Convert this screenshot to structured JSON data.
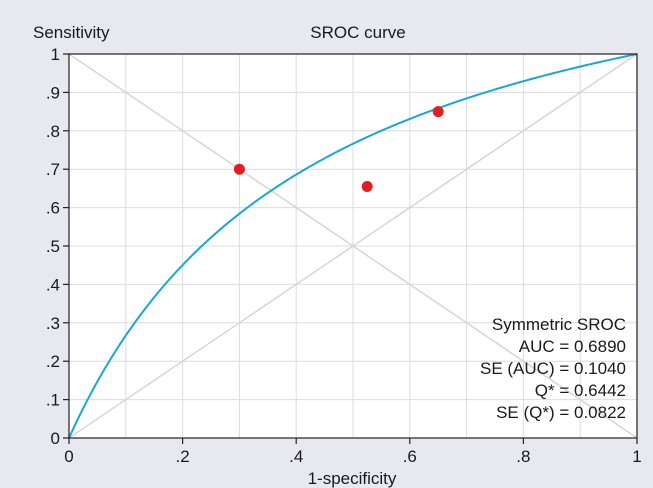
{
  "chart_data": {
    "type": "scatter",
    "title": "SROC curve",
    "xlabel": "1-specificity",
    "ylabel": "Sensitivity",
    "xlim": [
      0,
      1
    ],
    "ylim": [
      0,
      1
    ],
    "grid": true,
    "x_ticks": [
      0,
      0.1,
      0.2,
      0.3,
      0.4,
      0.5,
      0.6,
      0.7,
      0.8,
      0.9,
      1
    ],
    "y_ticks": [
      0,
      0.1,
      0.2,
      0.3,
      0.4,
      0.5,
      0.6,
      0.7,
      0.8,
      0.9,
      1
    ],
    "x_tick_labels": [
      {
        "value": 0,
        "label": "0"
      },
      {
        "value": 0.2,
        "label": ".2"
      },
      {
        "value": 0.4,
        "label": ".4"
      },
      {
        "value": 0.6,
        "label": ".6"
      },
      {
        "value": 0.8,
        "label": ".8"
      },
      {
        "value": 1,
        "label": "1"
      }
    ],
    "y_tick_labels": [
      {
        "value": 0,
        "label": "0"
      },
      {
        "value": 0.1,
        "label": ".1"
      },
      {
        "value": 0.2,
        "label": ".2"
      },
      {
        "value": 0.3,
        "label": ".3"
      },
      {
        "value": 0.4,
        "label": ".4"
      },
      {
        "value": 0.5,
        "label": ".5"
      },
      {
        "value": 0.6,
        "label": ".6"
      },
      {
        "value": 0.7,
        "label": ".7"
      },
      {
        "value": 0.8,
        "label": ".8"
      },
      {
        "value": 0.9,
        "label": ".9"
      },
      {
        "value": 1,
        "label": "1"
      }
    ],
    "points": [
      {
        "x": 0.3,
        "y": 0.7
      },
      {
        "x": 0.525,
        "y": 0.655
      },
      {
        "x": 0.65,
        "y": 0.85
      }
    ],
    "curve": {
      "q_star": 0.6442
    },
    "reference_lines": [
      "diagonal",
      "anti-diagonal"
    ],
    "annotation": [
      "Symmetric SROC",
      "AUC = 0.6890",
      "SE (AUC) = 0.1040",
      "Q* = 0.6442",
      "SE (Q*) = 0.0822"
    ],
    "colors": {
      "background": "#e8e8f0",
      "plot_background": "#ffffff",
      "grid": "#dcdcdc",
      "reference": "#d6d6d6",
      "curve": "#1aa7d6",
      "points": "#e02020",
      "axis": "#222222"
    }
  }
}
